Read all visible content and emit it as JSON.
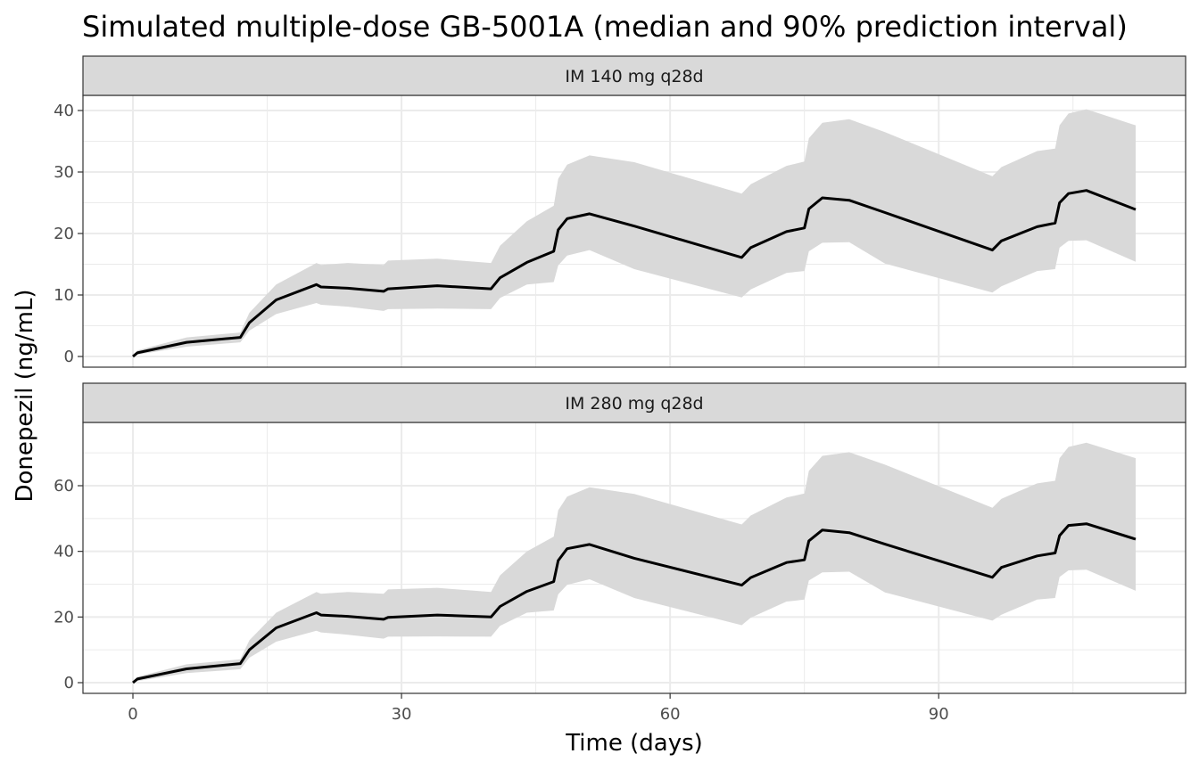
{
  "chart_data": {
    "type": "area",
    "title": "Simulated multiple-dose GB-5001A (median and 90% prediction interval)",
    "xlabel": "Time (days)",
    "ylabel": "Donepezil (ng/mL)",
    "x_ticks": [
      0,
      30,
      60,
      90
    ],
    "xlim": [
      0,
      112
    ],
    "grid": true,
    "colors": {
      "band": "#d9d9d9",
      "median": "#000000",
      "strip": "#d9d9d9"
    },
    "panels": [
      {
        "label": "IM 140 mg q28d",
        "ylim": [
          0,
          42
        ],
        "y_ticks": [
          0,
          10,
          20,
          30,
          40
        ],
        "x": [
          0,
          0.5,
          6,
          12,
          13,
          16,
          20.5,
          21,
          24,
          28,
          28.5,
          34,
          40,
          41,
          44,
          47,
          47.5,
          48.5,
          51,
          56,
          68,
          69,
          73,
          75,
          75.5,
          77,
          80,
          84,
          96,
          97,
          101,
          103,
          103.5,
          104.5,
          106.5,
          112
        ],
        "median": [
          0,
          0.6,
          2.3,
          3.1,
          5.5,
          9.2,
          11.7,
          11.3,
          11.1,
          10.6,
          11.0,
          11.5,
          11.0,
          12.8,
          15.3,
          17.1,
          20.6,
          22.4,
          23.2,
          21.2,
          16.1,
          17.7,
          20.3,
          20.9,
          24.0,
          25.8,
          25.4,
          23.4,
          17.3,
          18.8,
          21.1,
          21.7,
          25.0,
          26.5,
          27.0,
          23.9
        ],
        "p5": [
          0,
          0.3,
          1.6,
          2.3,
          4.2,
          6.9,
          8.7,
          8.4,
          8.1,
          7.4,
          7.7,
          7.8,
          7.7,
          9.5,
          11.7,
          12.1,
          14.8,
          16.4,
          17.3,
          14.2,
          9.6,
          10.9,
          13.6,
          13.9,
          17.1,
          18.5,
          18.6,
          15.1,
          10.4,
          11.4,
          13.9,
          14.2,
          17.7,
          18.8,
          18.9,
          15.4
        ],
        "p95": [
          0,
          1.0,
          3.1,
          3.9,
          7.1,
          11.7,
          15.2,
          14.9,
          15.2,
          14.9,
          15.6,
          15.9,
          15.2,
          18.0,
          22.0,
          24.5,
          28.9,
          31.2,
          32.7,
          31.6,
          26.5,
          28.0,
          31.0,
          31.7,
          35.5,
          38.0,
          38.6,
          36.5,
          29.3,
          30.8,
          33.4,
          33.8,
          37.6,
          39.5,
          40.2,
          37.6
        ]
      },
      {
        "label": "IM 280 mg q28d",
        "ylim": [
          0,
          76
        ],
        "y_ticks": [
          0,
          20,
          40,
          60
        ],
        "x": [
          0,
          0.5,
          6,
          12,
          13,
          16,
          20.5,
          21,
          24,
          28,
          28.5,
          34,
          40,
          41,
          44,
          47,
          47.5,
          48.5,
          51,
          56,
          68,
          69,
          73,
          75,
          75.5,
          77,
          80,
          84,
          96,
          97,
          101,
          103,
          103.5,
          104.5,
          106.5,
          112
        ],
        "median": [
          0,
          1.1,
          4.2,
          5.8,
          10.0,
          16.7,
          21.3,
          20.6,
          20.2,
          19.3,
          19.9,
          20.6,
          20.0,
          23.2,
          27.8,
          30.8,
          37.2,
          40.8,
          42.1,
          37.9,
          29.7,
          32.0,
          36.6,
          37.4,
          43.2,
          46.5,
          45.7,
          42.2,
          32.1,
          35.1,
          38.6,
          39.5,
          44.8,
          47.9,
          48.4,
          43.7
        ],
        "p5": [
          0,
          0.5,
          2.9,
          4.1,
          7.6,
          12.5,
          15.8,
          15.3,
          14.6,
          13.4,
          14.0,
          14.1,
          14.0,
          17.3,
          21.3,
          22.0,
          26.9,
          29.8,
          31.5,
          25.8,
          17.5,
          19.8,
          24.7,
          25.3,
          31.1,
          33.6,
          33.8,
          27.5,
          18.9,
          20.7,
          25.3,
          25.8,
          32.2,
          34.2,
          34.4,
          28.0
        ],
        "p95": [
          0,
          1.8,
          5.6,
          7.1,
          12.9,
          21.3,
          27.6,
          27.1,
          27.6,
          27.1,
          28.4,
          28.9,
          27.6,
          32.7,
          40.0,
          44.5,
          52.5,
          56.7,
          59.5,
          57.5,
          48.2,
          50.9,
          56.4,
          57.6,
          64.5,
          69.1,
          70.2,
          66.4,
          53.3,
          56.0,
          60.7,
          61.5,
          68.4,
          71.8,
          73.1,
          68.4
        ]
      }
    ]
  }
}
